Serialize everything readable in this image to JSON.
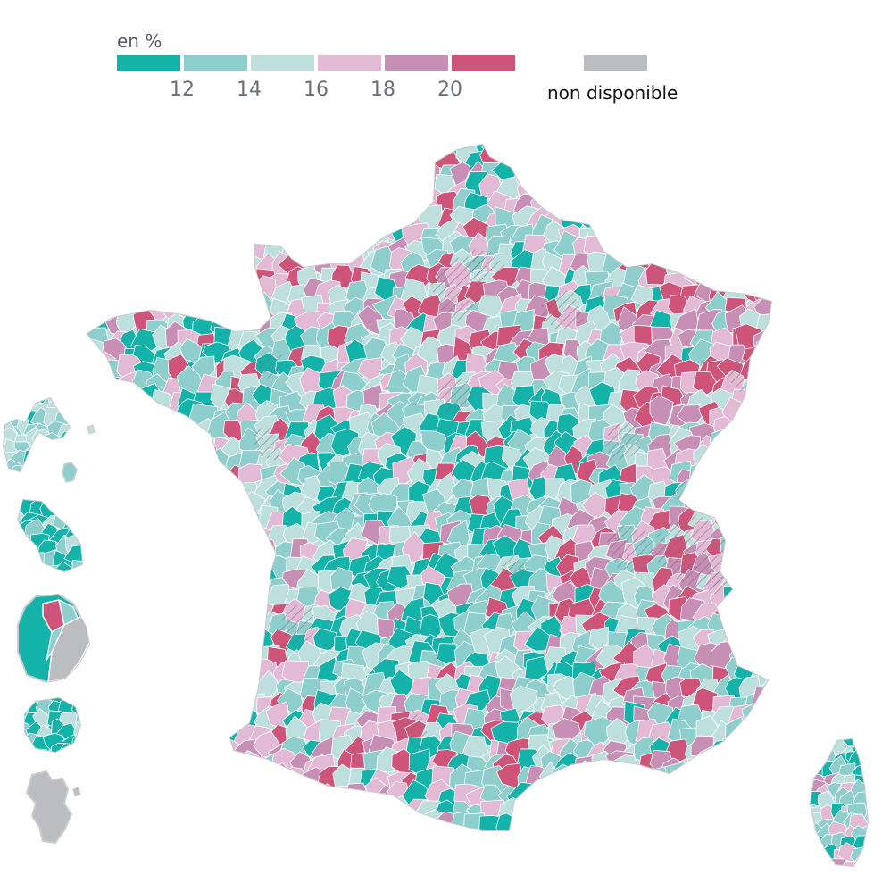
{
  "legend": {
    "title": "en %",
    "bins": [
      {
        "color": "#13b3aa"
      },
      {
        "color": "#8ecfcd"
      },
      {
        "color": "#bde0df"
      },
      {
        "color": "#e3bad5"
      },
      {
        "color": "#c78eb6"
      },
      {
        "color": "#cf547a"
      }
    ],
    "ticks": [
      "12",
      "14",
      "16",
      "18",
      "20"
    ],
    "na": {
      "label": "non disponible",
      "color": "#bcbdc1"
    }
  },
  "map": {
    "boundary_color": "#ffffff",
    "hatch_color": "#7a6a78",
    "regions": [
      "France métropolitaine",
      "Corse",
      "Guadeloupe",
      "Martinique",
      "Guyane",
      "La Réunion",
      "Mayotte"
    ]
  }
}
